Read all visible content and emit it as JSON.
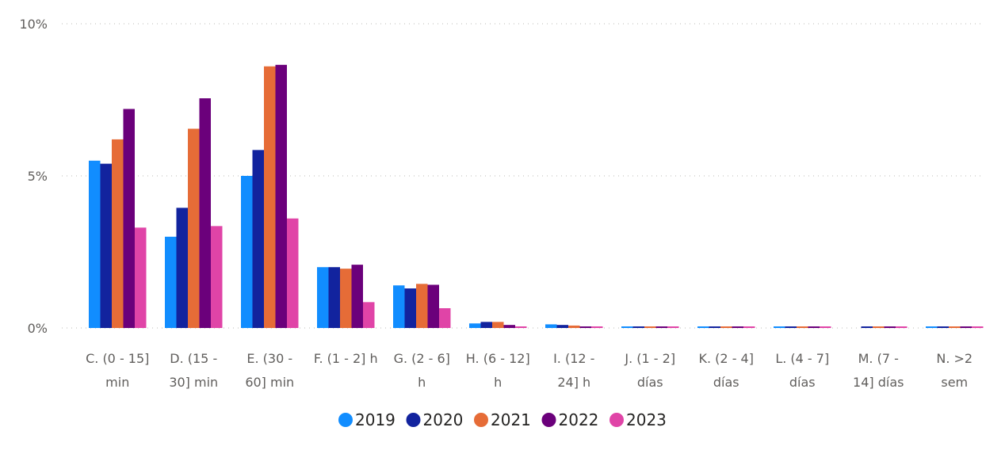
{
  "chart_data": {
    "type": "bar",
    "title": "",
    "xlabel": "",
    "ylabel": "",
    "ylim": [
      0,
      10
    ],
    "y_ticks": [
      {
        "value": 0,
        "label": "0%"
      },
      {
        "value": 5,
        "label": "5%"
      },
      {
        "value": 10,
        "label": "10%"
      }
    ],
    "grid": true,
    "legend_position": "bottom",
    "categories": [
      [
        "C. (0 - 15]",
        "min"
      ],
      [
        "D. (15 -",
        "30] min"
      ],
      [
        "E. (30 -",
        "60] min"
      ],
      [
        "F. (1 - 2] h"
      ],
      [
        "G. (2 - 6]",
        "h"
      ],
      [
        "H. (6 - 12]",
        "h"
      ],
      [
        "I. (12 -",
        "24] h"
      ],
      [
        "J. (1 - 2]",
        "días"
      ],
      [
        "K. (2 - 4]",
        "días"
      ],
      [
        "L. (4 - 7]",
        "días"
      ],
      [
        "M. (7 -",
        "14] días"
      ],
      [
        "N. >2",
        "sem"
      ]
    ],
    "series": [
      {
        "name": "2019",
        "color": "#118dff",
        "values": [
          5.5,
          3.0,
          5.0,
          2.0,
          1.4,
          0.15,
          0.12,
          0.05,
          0.05,
          0.05,
          0.0,
          0.05
        ]
      },
      {
        "name": "2020",
        "color": "#12239e",
        "values": [
          5.4,
          3.95,
          5.85,
          2.0,
          1.3,
          0.2,
          0.1,
          0.05,
          0.05,
          0.05,
          0.05,
          0.05
        ]
      },
      {
        "name": "2021",
        "color": "#e66c37",
        "values": [
          6.2,
          6.55,
          8.6,
          1.95,
          1.45,
          0.2,
          0.08,
          0.05,
          0.05,
          0.05,
          0.05,
          0.05
        ]
      },
      {
        "name": "2022",
        "color": "#6b007b",
        "values": [
          7.2,
          7.55,
          8.65,
          2.08,
          1.42,
          0.1,
          0.05,
          0.05,
          0.05,
          0.05,
          0.05,
          0.05
        ]
      },
      {
        "name": "2023",
        "color": "#e044a7",
        "values": [
          3.3,
          3.35,
          3.6,
          0.85,
          0.65,
          0.05,
          0.05,
          0.05,
          0.05,
          0.05,
          0.05,
          0.05
        ]
      }
    ]
  }
}
